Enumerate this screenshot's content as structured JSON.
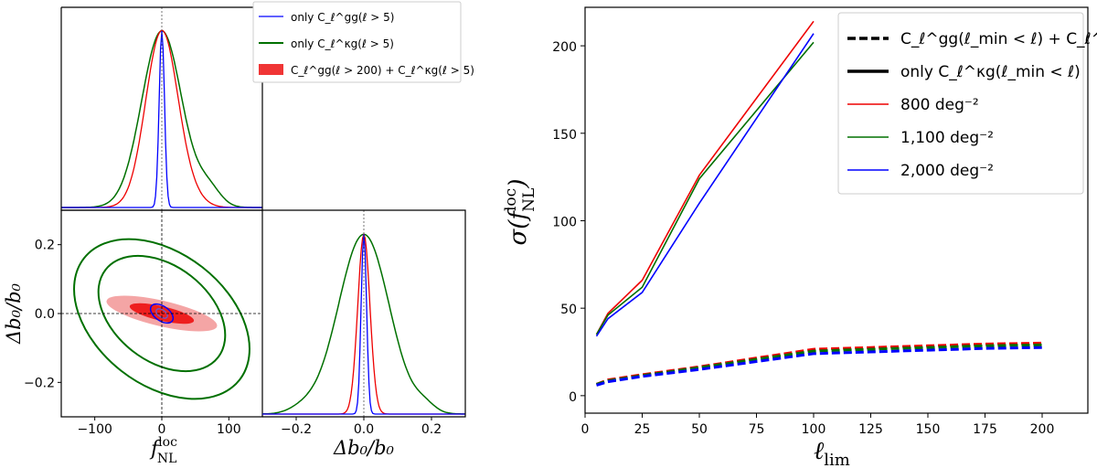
{
  "chart_data": [
    {
      "type": "corner",
      "panels": {
        "fnl_marginal": {
          "xlim": [
            -150,
            150
          ],
          "series": [
            {
              "name": "only C_ℓ^gg(ℓ > 5)",
              "color": "#0000ff",
              "center": 0,
              "width": 4
            },
            {
              "name": "only C_ℓ^κg(ℓ > 5)",
              "color": "#007000",
              "center": 0,
              "width": 30
            },
            {
              "name": "C_ℓ^gg(ℓ > 200) + C_ℓ^κg(ℓ > 5)",
              "color": "#ee0000",
              "center": 0,
              "width": 25
            }
          ]
        },
        "b0_marginal": {
          "xlim": [
            -0.3,
            0.3
          ],
          "xticks": [
            -0.2,
            0.0,
            0.2
          ],
          "xtick_labels": [
            "−0.2",
            "0.0",
            "0.2"
          ],
          "xlabel": "Δb₀/b₀",
          "series": [
            {
              "color": "#0000ff",
              "center": 0.0,
              "width": 0.006
            },
            {
              "color": "#007000",
              "center": 0.0,
              "width": 0.08
            },
            {
              "color": "#ee0000",
              "center": 0.0,
              "width": 0.02
            }
          ]
        },
        "joint": {
          "xlim": [
            -150,
            150
          ],
          "ylim": [
            -0.3,
            0.3
          ],
          "xticks": [
            -100,
            0,
            100
          ],
          "xtick_labels": [
            "−100",
            "0",
            "100"
          ],
          "yticks": [
            -0.2,
            0.0,
            0.2
          ],
          "ytick_labels": [
            "−0.2",
            "0.0",
            "0.2"
          ],
          "xlabel_main": "f",
          "xlabel_sub": "NL",
          "xlabel_sup": "loc",
          "ylabel": "Δb₀/b₀",
          "fiducial": [
            0,
            0
          ]
        }
      },
      "legend": [
        {
          "label": "only C_ℓ^gg(ℓ > 5)",
          "color": "#0000ff",
          "kind": "line"
        },
        {
          "label": "only C_ℓ^κg(ℓ > 5)",
          "color": "#007000",
          "kind": "line"
        },
        {
          "label": "C_ℓ^gg(ℓ > 200) + C_ℓ^κg(ℓ > 5)",
          "color": "#ee0000",
          "kind": "patch"
        }
      ]
    },
    {
      "type": "line",
      "x": [
        5,
        10,
        25,
        50,
        100
      ],
      "x_dashed": [
        5,
        10,
        25,
        50,
        100,
        125,
        150,
        175,
        200
      ],
      "xlim": [
        0,
        220
      ],
      "ylim": [
        -10,
        222
      ],
      "xticks": [
        0,
        25,
        50,
        75,
        100,
        125,
        150,
        175,
        200
      ],
      "yticks": [
        0,
        50,
        100,
        150,
        200
      ],
      "xlabel_main": "ℓ",
      "xlabel_sub": "lim",
      "ylabel_main": "σ(f",
      "ylabel_sub": "NL",
      "ylabel_sup": "loc",
      "ylabel_close": ")",
      "series": [
        {
          "name": "800 deg⁻²",
          "color": "#ee0000",
          "solid": [
            35,
            47,
            66,
            126,
            214
          ],
          "dashed": [
            6.5,
            9,
            12,
            16.5,
            26.5,
            27.5,
            28.5,
            29.5,
            30
          ]
        },
        {
          "name": "1,100 deg⁻²",
          "color": "#007000",
          "solid": [
            35,
            46,
            62,
            124,
            202
          ],
          "dashed": [
            6.5,
            8.5,
            11.5,
            16,
            25.5,
            26.5,
            27.5,
            28.5,
            29
          ]
        },
        {
          "name": "2,000 deg⁻²",
          "color": "#0000ff",
          "solid": [
            34,
            44,
            59,
            110,
            207
          ],
          "dashed": [
            6,
            8,
            11,
            15,
            24,
            25,
            26,
            27,
            27.5
          ]
        }
      ],
      "legend": [
        {
          "label": "C_ℓ^gg(ℓ_min < ℓ) + C_ℓ^κg",
          "style": "dashed",
          "color": "#000000"
        },
        {
          "label": "only C_ℓ^κg(ℓ_min < ℓ)",
          "style": "solid",
          "color": "#000000"
        },
        {
          "label": "800 deg⁻²",
          "style": "solid",
          "color": "#ee0000"
        },
        {
          "label": "1,100 deg⁻²",
          "style": "solid",
          "color": "#007000"
        },
        {
          "label": "2,000 deg⁻²",
          "style": "solid",
          "color": "#0000ff"
        }
      ]
    }
  ]
}
